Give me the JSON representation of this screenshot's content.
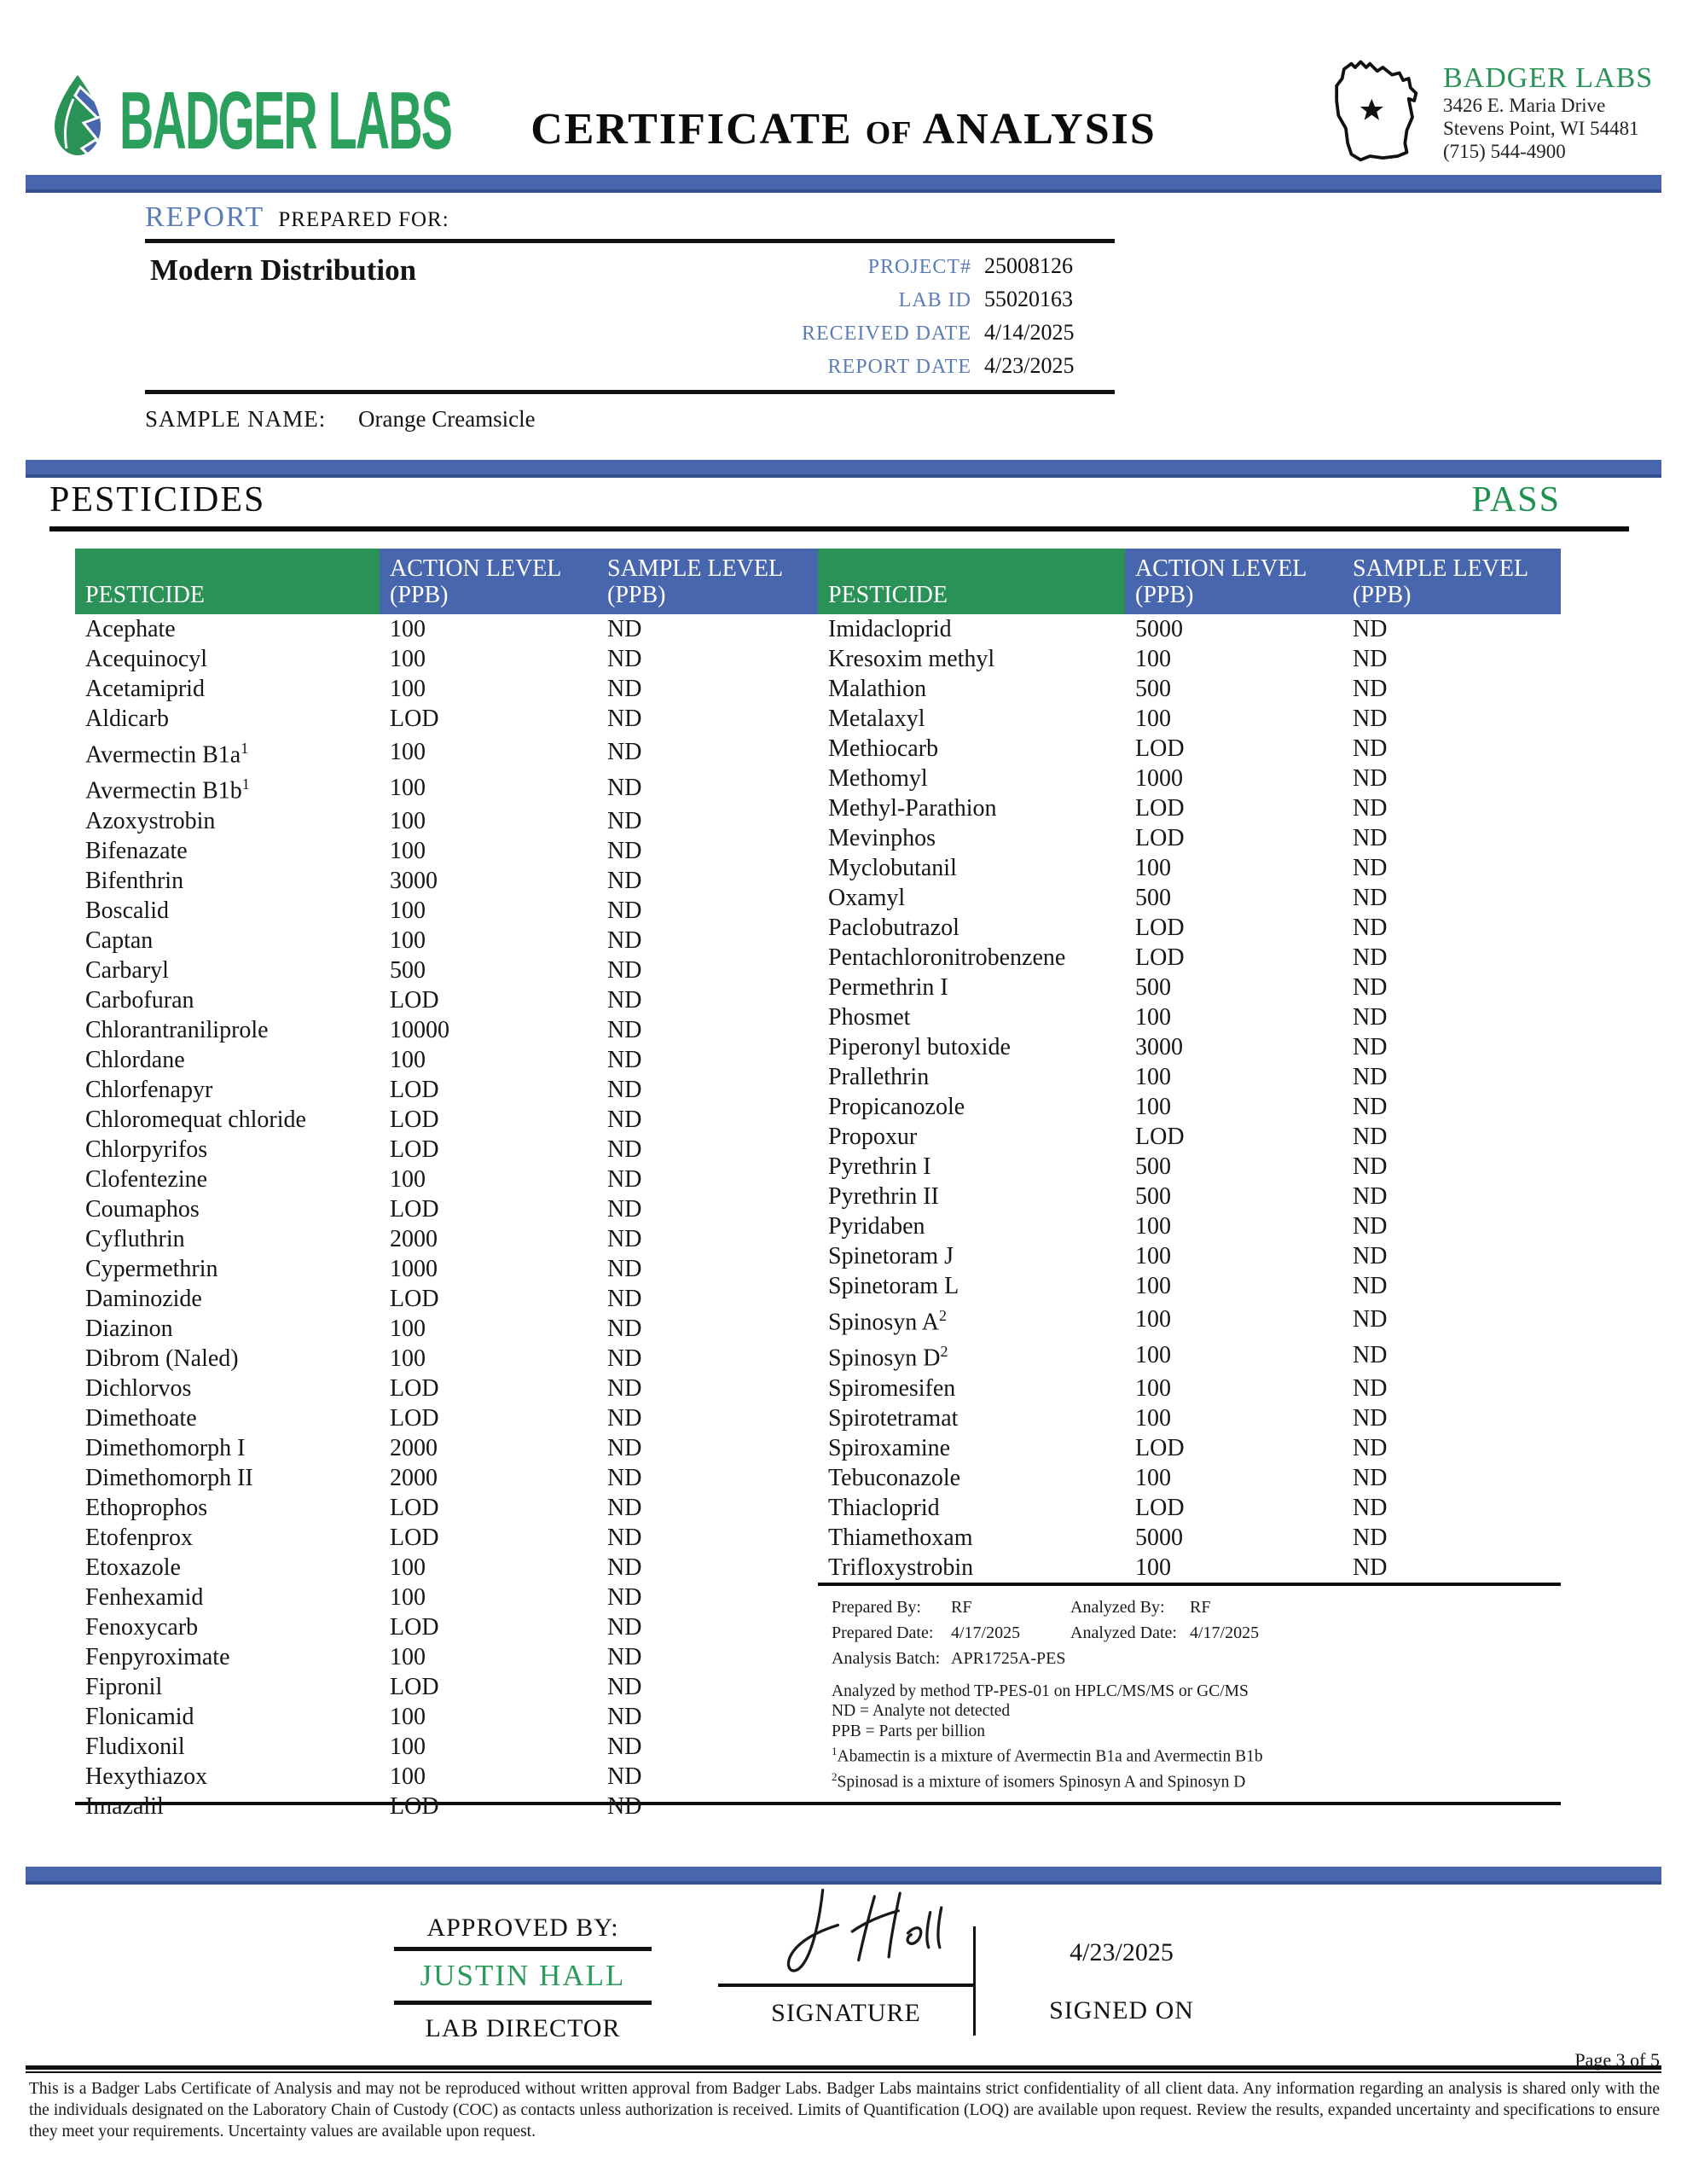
{
  "brand": {
    "wordmark": "BADGER LABS"
  },
  "title": {
    "part1": "CERTIFICATE",
    "of": "OF",
    "part2": "ANALYSIS"
  },
  "lab_info": {
    "name": "BADGER LABS",
    "address1": "3426 E. Maria Drive",
    "address2": "Stevens Point, WI 54481",
    "phone": "(715) 544-4900"
  },
  "report": {
    "section_title": "REPORT",
    "section_subtitle": "PREPARED FOR:",
    "client": "Modern Distribution",
    "fields": [
      {
        "label": "PROJECT#",
        "value": "25008126"
      },
      {
        "label": "LAB ID",
        "value": "55020163"
      },
      {
        "label": "RECEIVED DATE",
        "value": "4/14/2025"
      },
      {
        "label": "REPORT DATE",
        "value": "4/23/2025"
      }
    ],
    "sample_label": "SAMPLE NAME:",
    "sample_value": "Orange Creamsicle"
  },
  "pesticides": {
    "heading": "PESTICIDES",
    "status": "PASS",
    "headers": {
      "pesticide": "PESTICIDE",
      "action": "ACTION LEVEL",
      "sample": "SAMPLE LEVEL",
      "unit": "(PPB)"
    },
    "left": [
      {
        "name": "Acephate",
        "action": "100",
        "sample": "ND"
      },
      {
        "name": "Acequinocyl",
        "action": "100",
        "sample": "ND"
      },
      {
        "name": "Acetamiprid",
        "action": "100",
        "sample": "ND"
      },
      {
        "name": "Aldicarb",
        "action": "LOD",
        "sample": "ND"
      },
      {
        "name": "Avermectin B1a",
        "sup": "1",
        "action": "100",
        "sample": "ND"
      },
      {
        "name": "Avermectin B1b",
        "sup": "1",
        "action": "100",
        "sample": "ND"
      },
      {
        "name": "Azoxystrobin",
        "action": "100",
        "sample": "ND"
      },
      {
        "name": "Bifenazate",
        "action": "100",
        "sample": "ND"
      },
      {
        "name": "Bifenthrin",
        "action": "3000",
        "sample": "ND"
      },
      {
        "name": "Boscalid",
        "action": "100",
        "sample": "ND"
      },
      {
        "name": "Captan",
        "action": "100",
        "sample": "ND"
      },
      {
        "name": "Carbaryl",
        "action": "500",
        "sample": "ND"
      },
      {
        "name": "Carbofuran",
        "action": "LOD",
        "sample": "ND"
      },
      {
        "name": "Chlorantraniliprole",
        "action": "10000",
        "sample": "ND"
      },
      {
        "name": "Chlordane",
        "action": "100",
        "sample": "ND"
      },
      {
        "name": "Chlorfenapyr",
        "action": "LOD",
        "sample": "ND"
      },
      {
        "name": "Chloromequat chloride",
        "action": "LOD",
        "sample": "ND"
      },
      {
        "name": "Chlorpyrifos",
        "action": "LOD",
        "sample": "ND"
      },
      {
        "name": "Clofentezine",
        "action": "100",
        "sample": "ND"
      },
      {
        "name": "Coumaphos",
        "action": "LOD",
        "sample": "ND"
      },
      {
        "name": "Cyfluthrin",
        "action": "2000",
        "sample": "ND"
      },
      {
        "name": "Cypermethrin",
        "action": "1000",
        "sample": "ND"
      },
      {
        "name": "Daminozide",
        "action": "LOD",
        "sample": "ND"
      },
      {
        "name": "Diazinon",
        "action": "100",
        "sample": "ND"
      },
      {
        "name": "Dibrom (Naled)",
        "action": "100",
        "sample": "ND"
      },
      {
        "name": "Dichlorvos",
        "action": "LOD",
        "sample": "ND"
      },
      {
        "name": "Dimethoate",
        "action": "LOD",
        "sample": "ND"
      },
      {
        "name": "Dimethomorph I",
        "action": "2000",
        "sample": "ND"
      },
      {
        "name": "Dimethomorph II",
        "action": "2000",
        "sample": "ND"
      },
      {
        "name": "Ethoprophos",
        "action": "LOD",
        "sample": "ND"
      },
      {
        "name": "Etofenprox",
        "action": "LOD",
        "sample": "ND"
      },
      {
        "name": "Etoxazole",
        "action": "100",
        "sample": "ND"
      },
      {
        "name": "Fenhexamid",
        "action": "100",
        "sample": "ND"
      },
      {
        "name": "Fenoxycarb",
        "action": "LOD",
        "sample": "ND"
      },
      {
        "name": "Fenpyroximate",
        "action": "100",
        "sample": "ND"
      },
      {
        "name": "Fipronil",
        "action": "LOD",
        "sample": "ND"
      },
      {
        "name": "Flonicamid",
        "action": "100",
        "sample": "ND"
      },
      {
        "name": "Fludixonil",
        "action": "100",
        "sample": "ND"
      },
      {
        "name": "Hexythiazox",
        "action": "100",
        "sample": "ND"
      },
      {
        "name": "Imazalil",
        "action": "LOD",
        "sample": "ND"
      }
    ],
    "right": [
      {
        "name": "Imidacloprid",
        "action": "5000",
        "sample": "ND"
      },
      {
        "name": "Kresoxim methyl",
        "action": "100",
        "sample": "ND"
      },
      {
        "name": "Malathion",
        "action": "500",
        "sample": "ND"
      },
      {
        "name": "Metalaxyl",
        "action": "100",
        "sample": "ND"
      },
      {
        "name": "Methiocarb",
        "action": "LOD",
        "sample": "ND"
      },
      {
        "name": "Methomyl",
        "action": "1000",
        "sample": "ND"
      },
      {
        "name": "Methyl-Parathion",
        "action": "LOD",
        "sample": "ND"
      },
      {
        "name": "Mevinphos",
        "action": "LOD",
        "sample": "ND"
      },
      {
        "name": "Myclobutanil",
        "action": "100",
        "sample": "ND"
      },
      {
        "name": "Oxamyl",
        "action": "500",
        "sample": "ND"
      },
      {
        "name": "Paclobutrazol",
        "action": "LOD",
        "sample": "ND"
      },
      {
        "name": "Pentachloronitrobenzene",
        "action": "LOD",
        "sample": "ND"
      },
      {
        "name": "Permethrin I",
        "action": "500",
        "sample": "ND"
      },
      {
        "name": "Phosmet",
        "action": "100",
        "sample": "ND"
      },
      {
        "name": "Piperonyl butoxide",
        "action": "3000",
        "sample": "ND"
      },
      {
        "name": "Prallethrin",
        "action": "100",
        "sample": "ND"
      },
      {
        "name": "Propicanozole",
        "action": "100",
        "sample": "ND"
      },
      {
        "name": "Propoxur",
        "action": "LOD",
        "sample": "ND"
      },
      {
        "name": "Pyrethrin I",
        "action": "500",
        "sample": "ND"
      },
      {
        "name": "Pyrethrin II",
        "action": "500",
        "sample": "ND"
      },
      {
        "name": "Pyridaben",
        "action": "100",
        "sample": "ND"
      },
      {
        "name": "Spinetoram J",
        "action": "100",
        "sample": "ND"
      },
      {
        "name": "Spinetoram L",
        "action": "100",
        "sample": "ND"
      },
      {
        "name": "Spinosyn A",
        "sup": "2",
        "action": "100",
        "sample": "ND"
      },
      {
        "name": "Spinosyn D",
        "sup": "2",
        "action": "100",
        "sample": "ND"
      },
      {
        "name": "Spiromesifen",
        "action": "100",
        "sample": "ND"
      },
      {
        "name": "Spirotetramat",
        "action": "100",
        "sample": "ND"
      },
      {
        "name": "Spiroxamine",
        "action": "LOD",
        "sample": "ND"
      },
      {
        "name": "Tebuconazole",
        "action": "100",
        "sample": "ND"
      },
      {
        "name": "Thiacloprid",
        "action": "LOD",
        "sample": "ND"
      },
      {
        "name": "Thiamethoxam",
        "action": "5000",
        "sample": "ND"
      },
      {
        "name": "Trifloxystrobin",
        "action": "100",
        "sample": "ND"
      }
    ],
    "notes": {
      "prepared_by_label": "Prepared By:",
      "prepared_by": "RF",
      "analyzed_by_label": "Analyzed By:",
      "analyzed_by": "RF",
      "prepared_date_label": "Prepared Date:",
      "prepared_date": "4/17/2025",
      "analyzed_date_label": "Analyzed Date:",
      "analyzed_date": "4/17/2025",
      "batch_label": "Analysis Batch:",
      "batch": "APR1725A-PES",
      "method": "Analyzed by method TP-PES-01 on HPLC/MS/MS or GC/MS",
      "nd_note": "ND = Analyte not detected",
      "ppb_note": "PPB = Parts per billion",
      "footnote1_sup": "1",
      "footnote1": "Abamectin is a mixture of Avermectin B1a and Avermectin B1b",
      "footnote2_sup": "2",
      "footnote2": "Spinosad is a mixture of isomers Spinosyn A and Spinosyn D"
    }
  },
  "approval": {
    "approved_by_label": "APPROVED BY:",
    "name": "JUSTIN HALL",
    "role": "LAB DIRECTOR",
    "signature_label": "SIGNATURE",
    "signed_on_label": "SIGNED ON",
    "signed_date": "4/23/2025"
  },
  "footer": {
    "page": "Page 3 of 5",
    "disclaimer": "This is a Badger Labs Certificate of Analysis and may not be reproduced without written approval from Badger Labs. Badger Labs maintains strict confidentiality of all client data. Any information regarding an analysis is shared only with the the individuals designated on the Laboratory Chain of Custody (COC) as contacts unless authorization is received. Limits of Quantification (LOQ) are available upon request. Review the results, expanded uncertainty and specifications to ensure they meet your requirements. Uncertainty values are available upon request."
  },
  "colors": {
    "blue": "#4866ae",
    "green": "#2a9157",
    "label_blue": "#5b7cb5",
    "pass_green": "#1e9150"
  }
}
